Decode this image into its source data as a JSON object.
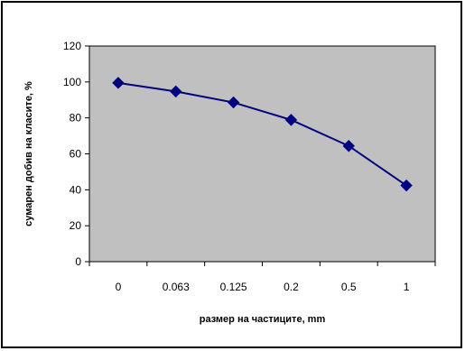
{
  "chart_data": {
    "type": "line",
    "title": "",
    "xlabel": "размер на частиците, mm",
    "ylabel": "сумарен добив на класите, %",
    "categories": [
      "0",
      "0.063",
      "0.125",
      "0.2",
      "0.5",
      "1"
    ],
    "series": [
      {
        "values": [
          99.5,
          94.7,
          88.6,
          78.9,
          64.4,
          42.4
        ]
      }
    ],
    "ylim": [
      0,
      120
    ],
    "yticks": [
      0,
      20,
      40,
      60,
      80,
      100,
      120
    ],
    "ytick_labels": [
      "0",
      "20",
      "40",
      "60",
      "80",
      "100",
      "120"
    ],
    "grid": false,
    "legend": "none",
    "colors": {
      "plot_background": "#c0c0c0",
      "series_line": "#000080",
      "marker": "#000080",
      "axis": "#000000",
      "frame": "#000000"
    },
    "marker": "diamond-icon"
  }
}
